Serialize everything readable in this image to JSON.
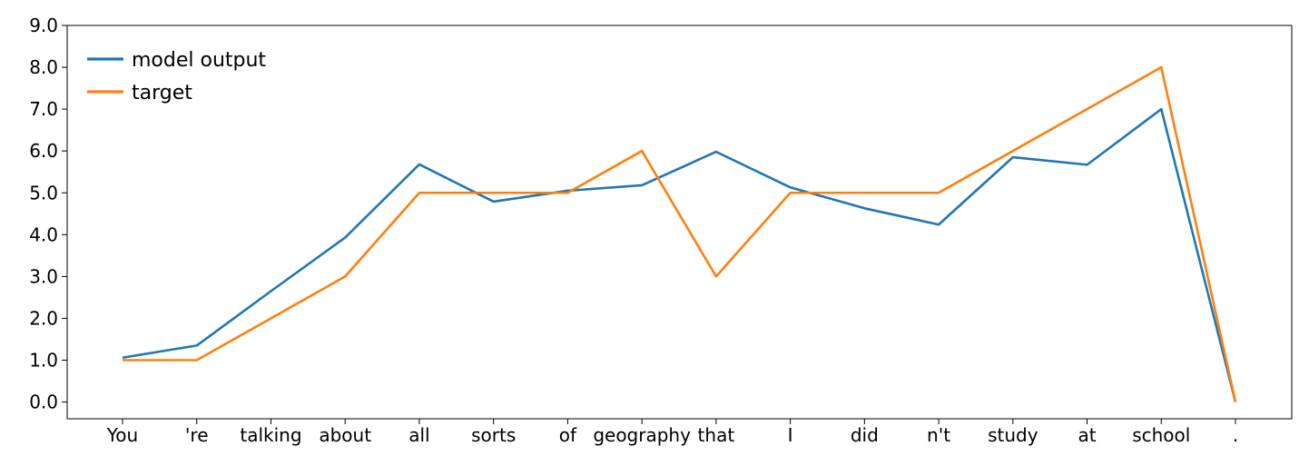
{
  "chart_data": {
    "type": "line",
    "categories": [
      "You",
      "'re",
      "talking",
      "about",
      "all",
      "sorts",
      "of",
      "geography",
      "that",
      "I",
      "did",
      "n't",
      "study",
      "at",
      "school",
      "."
    ],
    "series": [
      {
        "name": "model output",
        "color": "#1f77b4",
        "values": [
          1.06,
          1.35,
          2.65,
          3.93,
          5.68,
          4.79,
          5.05,
          5.18,
          5.98,
          5.13,
          4.63,
          4.24,
          5.85,
          5.67,
          7.0,
          0.0
        ]
      },
      {
        "name": "target",
        "color": "#ff7f0e",
        "values": [
          1.0,
          1.0,
          2.0,
          3.0,
          5.0,
          5.0,
          5.0,
          6.0,
          3.0,
          5.0,
          5.0,
          5.0,
          6.0,
          7.0,
          8.0,
          0.0
        ]
      }
    ],
    "yticks": [
      "0.0",
      "1.0",
      "2.0",
      "3.0",
      "4.0",
      "5.0",
      "6.0",
      "7.0",
      "8.0",
      "9.0"
    ],
    "ylim": [
      -0.4,
      9.0
    ],
    "xlabel": "",
    "ylabel": "",
    "title": "",
    "legend": "top-left",
    "grid": false
  }
}
